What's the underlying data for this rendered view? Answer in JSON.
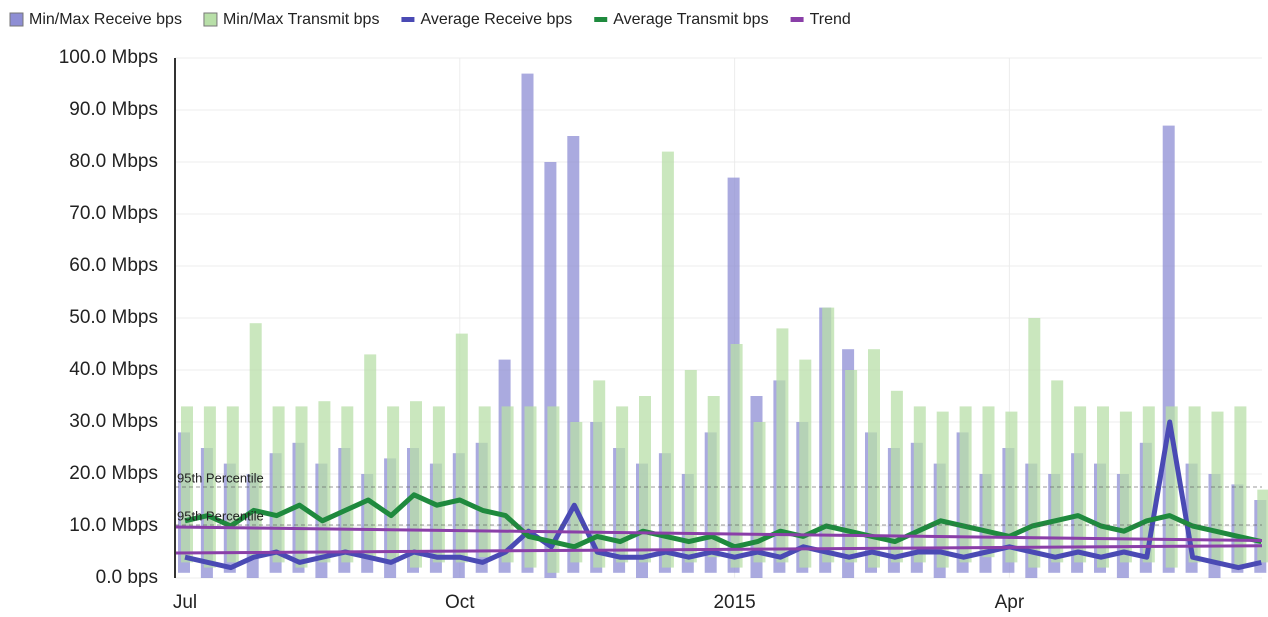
{
  "chart_data": {
    "type": "range-line",
    "categories": [
      "Jul",
      null,
      null,
      null,
      null,
      null,
      null,
      null,
      null,
      null,
      null,
      null,
      "Oct",
      null,
      null,
      null,
      null,
      null,
      null,
      null,
      null,
      null,
      null,
      null,
      "2015",
      null,
      null,
      null,
      null,
      null,
      null,
      null,
      null,
      null,
      null,
      null,
      "Apr",
      null,
      null,
      null,
      null,
      null,
      null,
      null,
      null,
      null,
      null,
      null
    ],
    "series": [
      {
        "name": "Min/Max Receive bps",
        "color": "#8e8ed4",
        "kind": "range",
        "low": [
          1,
          0,
          1,
          0,
          1,
          1,
          0,
          1,
          1,
          0,
          1,
          1,
          0,
          1,
          1,
          1,
          0,
          1,
          1,
          1,
          0,
          1,
          1,
          1,
          1,
          0,
          1,
          1,
          1,
          0,
          1,
          1,
          1,
          0,
          1,
          1,
          1,
          0,
          1,
          1,
          1,
          0,
          1,
          1,
          1,
          0,
          1,
          1
        ],
        "high": [
          28,
          25,
          22,
          20,
          24,
          26,
          22,
          25,
          20,
          23,
          25,
          22,
          24,
          26,
          42,
          97,
          80,
          85,
          30,
          25,
          22,
          24,
          20,
          28,
          77,
          35,
          38,
          30,
          52,
          44,
          28,
          25,
          26,
          22,
          28,
          20,
          25,
          22,
          20,
          24,
          22,
          20,
          26,
          87,
          22,
          20,
          18,
          15
        ]
      },
      {
        "name": "Min/Max Transmit bps",
        "color": "#b8dfa8",
        "kind": "range",
        "low": [
          3,
          2,
          3,
          4,
          3,
          2,
          3,
          3,
          4,
          3,
          2,
          3,
          3,
          4,
          3,
          2,
          1,
          3,
          2,
          3,
          3,
          2,
          3,
          4,
          2,
          3,
          3,
          2,
          3,
          3,
          2,
          3,
          3,
          2,
          3,
          4,
          3,
          2,
          3,
          3,
          2,
          3,
          3,
          2,
          3,
          3,
          2,
          3
        ],
        "high": [
          33,
          33,
          33,
          49,
          33,
          33,
          34,
          33,
          43,
          33,
          34,
          33,
          47,
          33,
          33,
          33,
          33,
          30,
          38,
          33,
          35,
          82,
          40,
          35,
          45,
          30,
          48,
          42,
          52,
          40,
          44,
          36,
          33,
          32,
          33,
          33,
          32,
          50,
          38,
          33,
          33,
          32,
          33,
          33,
          33,
          32,
          33,
          17
        ]
      },
      {
        "name": "Average Receive bps",
        "color": "#4a4ab4",
        "kind": "line",
        "values": [
          4,
          3,
          2,
          4,
          5,
          3,
          4,
          5,
          4,
          3,
          5,
          4,
          4,
          3,
          5,
          9,
          6,
          14,
          5,
          4,
          4,
          5,
          4,
          5,
          4,
          5,
          4,
          6,
          5,
          4,
          5,
          4,
          5,
          5,
          4,
          5,
          6,
          5,
          4,
          5,
          4,
          5,
          4,
          30,
          4,
          3,
          2,
          3
        ]
      },
      {
        "name": "Average Transmit bps",
        "color": "#1f8a3e",
        "kind": "line",
        "values": [
          11,
          12,
          10,
          13,
          12,
          14,
          11,
          13,
          15,
          12,
          16,
          14,
          15,
          13,
          12,
          8,
          7,
          6,
          8,
          7,
          9,
          8,
          7,
          8,
          6,
          7,
          9,
          8,
          10,
          9,
          8,
          7,
          9,
          11,
          10,
          9,
          8,
          10,
          11,
          12,
          10,
          9,
          11,
          12,
          10,
          9,
          8,
          7
        ]
      }
    ],
    "trend": {
      "name": "Trend",
      "color": "#8a3fa8",
      "lines": [
        [
          9.8,
          7.2
        ],
        [
          4.8,
          6.2
        ]
      ]
    },
    "percentiles": [
      {
        "label": "95th Percentile",
        "value": 17.5
      },
      {
        "label": "95th Percentile",
        "value": 10.2
      }
    ],
    "ylim": [
      0,
      100
    ],
    "yticks": [
      {
        "value": 0,
        "label": "0.0 bps"
      },
      {
        "value": 10,
        "label": "10.0 Mbps"
      },
      {
        "value": 20,
        "label": "20.0 Mbps"
      },
      {
        "value": 30,
        "label": "30.0 Mbps"
      },
      {
        "value": 40,
        "label": "40.0 Mbps"
      },
      {
        "value": 50,
        "label": "50.0 Mbps"
      },
      {
        "value": 60,
        "label": "60.0 Mbps"
      },
      {
        "value": 70,
        "label": "70.0 Mbps"
      },
      {
        "value": 80,
        "label": "80.0 Mbps"
      },
      {
        "value": 90,
        "label": "90.0 Mbps"
      },
      {
        "value": 100,
        "label": "100.0 Mbps"
      }
    ],
    "grid": true
  }
}
